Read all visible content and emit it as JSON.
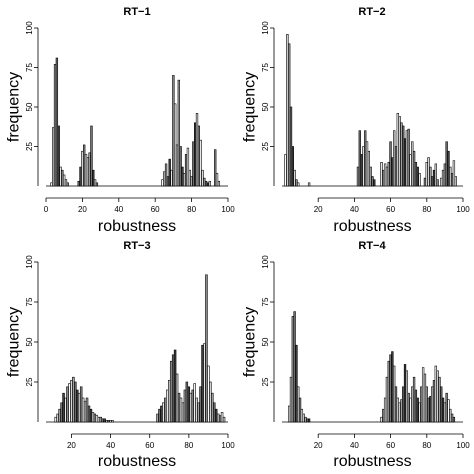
{
  "chart_data": [
    {
      "type": "bar",
      "title": "RT−1",
      "xlabel": "robustness",
      "ylabel": "frequency",
      "xlim": [
        0,
        100
      ],
      "ylim": [
        0,
        100
      ],
      "xticks": [
        "0",
        "20",
        "40",
        "60",
        "80",
        "100"
      ],
      "yticks": [
        "25",
        "50",
        "75",
        "100"
      ],
      "bars": [
        {
          "x": 3.0,
          "y": 2
        },
        {
          "x": 4.0,
          "y": 37
        },
        {
          "x": 5.0,
          "y": 77
        },
        {
          "x": 6.0,
          "y": 81
        },
        {
          "x": 7.0,
          "y": 38
        },
        {
          "x": 8.0,
          "y": 12
        },
        {
          "x": 9.0,
          "y": 10
        },
        {
          "x": 10.0,
          "y": 7
        },
        {
          "x": 11.0,
          "y": 4
        },
        {
          "x": 12.0,
          "y": 2
        },
        {
          "x": 18.0,
          "y": 3
        },
        {
          "x": 19.0,
          "y": 12
        },
        {
          "x": 20.0,
          "y": 22
        },
        {
          "x": 21.0,
          "y": 26
        },
        {
          "x": 22.0,
          "y": 20
        },
        {
          "x": 23.0,
          "y": 18
        },
        {
          "x": 24.0,
          "y": 21
        },
        {
          "x": 25.0,
          "y": 38
        },
        {
          "x": 26.0,
          "y": 10
        },
        {
          "x": 27.0,
          "y": 4
        },
        {
          "x": 28.0,
          "y": 2
        },
        {
          "x": 64.0,
          "y": 4
        },
        {
          "x": 65.0,
          "y": 9
        },
        {
          "x": 66.0,
          "y": 14
        },
        {
          "x": 67.0,
          "y": 6
        },
        {
          "x": 68.0,
          "y": 17
        },
        {
          "x": 69.0,
          "y": 10
        },
        {
          "x": 70.0,
          "y": 70
        },
        {
          "x": 71.0,
          "y": 52
        },
        {
          "x": 72.0,
          "y": 26
        },
        {
          "x": 73.0,
          "y": 67
        },
        {
          "x": 74.0,
          "y": 25
        },
        {
          "x": 75.0,
          "y": 12
        },
        {
          "x": 76.0,
          "y": 8
        },
        {
          "x": 77.0,
          "y": 20
        },
        {
          "x": 78.0,
          "y": 24
        },
        {
          "x": 79.0,
          "y": 10
        },
        {
          "x": 80.0,
          "y": 6
        },
        {
          "x": 81.0,
          "y": 28
        },
        {
          "x": 82.0,
          "y": 40
        },
        {
          "x": 83.0,
          "y": 46
        },
        {
          "x": 84.0,
          "y": 38
        },
        {
          "x": 85.0,
          "y": 29
        },
        {
          "x": 86.0,
          "y": 10
        },
        {
          "x": 87.0,
          "y": 5
        },
        {
          "x": 88.0,
          "y": 3
        },
        {
          "x": 89.0,
          "y": 2
        },
        {
          "x": 90.0,
          "y": 3
        },
        {
          "x": 93.0,
          "y": 23
        },
        {
          "x": 94.0,
          "y": 8
        },
        {
          "x": 95.0,
          "y": 3
        }
      ]
    },
    {
      "type": "bar",
      "title": "RT−2",
      "xlabel": "robustness",
      "ylabel": "frequency",
      "xlim": [
        0,
        100
      ],
      "ylim": [
        0,
        100
      ],
      "xticks": [
        "20",
        "40",
        "60",
        "80",
        "100"
      ],
      "yticks": [
        "25",
        "50",
        "75",
        "100"
      ],
      "bars": [
        {
          "x": 2.0,
          "y": 20
        },
        {
          "x": 3.0,
          "y": 96
        },
        {
          "x": 4.0,
          "y": 90
        },
        {
          "x": 5.0,
          "y": 50
        },
        {
          "x": 6.0,
          "y": 25
        },
        {
          "x": 7.0,
          "y": 10
        },
        {
          "x": 8.0,
          "y": 4
        },
        {
          "x": 9.0,
          "y": 2
        },
        {
          "x": 15.0,
          "y": 2
        },
        {
          "x": 42.0,
          "y": 12
        },
        {
          "x": 43.0,
          "y": 35
        },
        {
          "x": 44.0,
          "y": 20
        },
        {
          "x": 45.0,
          "y": 25
        },
        {
          "x": 46.0,
          "y": 35
        },
        {
          "x": 47.0,
          "y": 28
        },
        {
          "x": 48.0,
          "y": 22
        },
        {
          "x": 49.0,
          "y": 12
        },
        {
          "x": 50.0,
          "y": 6
        },
        {
          "x": 51.0,
          "y": 4
        },
        {
          "x": 55.0,
          "y": 15
        },
        {
          "x": 56.0,
          "y": 10
        },
        {
          "x": 57.0,
          "y": 14
        },
        {
          "x": 58.0,
          "y": 12
        },
        {
          "x": 59.0,
          "y": 15
        },
        {
          "x": 60.0,
          "y": 28
        },
        {
          "x": 61.0,
          "y": 18
        },
        {
          "x": 62.0,
          "y": 35
        },
        {
          "x": 63.0,
          "y": 25
        },
        {
          "x": 64.0,
          "y": 46
        },
        {
          "x": 65.0,
          "y": 44
        },
        {
          "x": 66.0,
          "y": 40
        },
        {
          "x": 67.0,
          "y": 38
        },
        {
          "x": 68.0,
          "y": 30
        },
        {
          "x": 69.0,
          "y": 35
        },
        {
          "x": 70.0,
          "y": 36
        },
        {
          "x": 71.0,
          "y": 20
        },
        {
          "x": 72.0,
          "y": 28
        },
        {
          "x": 73.0,
          "y": 22
        },
        {
          "x": 74.0,
          "y": 15
        },
        {
          "x": 75.0,
          "y": 12
        },
        {
          "x": 76.0,
          "y": 8
        },
        {
          "x": 79.0,
          "y": 5
        },
        {
          "x": 80.0,
          "y": 15
        },
        {
          "x": 81.0,
          "y": 18
        },
        {
          "x": 82.0,
          "y": 12
        },
        {
          "x": 83.0,
          "y": 6
        },
        {
          "x": 84.0,
          "y": 10
        },
        {
          "x": 85.0,
          "y": 14
        },
        {
          "x": 86.0,
          "y": 4
        },
        {
          "x": 88.0,
          "y": 5
        },
        {
          "x": 89.0,
          "y": 10
        },
        {
          "x": 90.0,
          "y": 14
        },
        {
          "x": 91.0,
          "y": 28
        },
        {
          "x": 92.0,
          "y": 22
        },
        {
          "x": 93.0,
          "y": 12
        },
        {
          "x": 94.0,
          "y": 8
        },
        {
          "x": 95.0,
          "y": 16
        },
        {
          "x": 96.0,
          "y": 6
        }
      ]
    },
    {
      "type": "bar",
      "title": "RT−3",
      "xlabel": "robustness",
      "ylabel": "frequency",
      "xlim": [
        7,
        100
      ],
      "ylim": [
        0,
        100
      ],
      "xticks": [
        "20",
        "40",
        "60",
        "80",
        "100"
      ],
      "yticks": [
        "25",
        "50",
        "75",
        "100"
      ],
      "bars": [
        {
          "x": 12.0,
          "y": 3
        },
        {
          "x": 13.0,
          "y": 5
        },
        {
          "x": 14.0,
          "y": 8
        },
        {
          "x": 15.0,
          "y": 12
        },
        {
          "x": 16.0,
          "y": 18
        },
        {
          "x": 17.0,
          "y": 15
        },
        {
          "x": 18.0,
          "y": 22
        },
        {
          "x": 19.0,
          "y": 24
        },
        {
          "x": 20.0,
          "y": 26
        },
        {
          "x": 21.0,
          "y": 28
        },
        {
          "x": 22.0,
          "y": 25
        },
        {
          "x": 23.0,
          "y": 20
        },
        {
          "x": 24.0,
          "y": 18
        },
        {
          "x": 25.0,
          "y": 22
        },
        {
          "x": 26.0,
          "y": 15
        },
        {
          "x": 27.0,
          "y": 13
        },
        {
          "x": 28.0,
          "y": 15
        },
        {
          "x": 29.0,
          "y": 10
        },
        {
          "x": 30.0,
          "y": 8
        },
        {
          "x": 31.0,
          "y": 6
        },
        {
          "x": 32.0,
          "y": 5
        },
        {
          "x": 33.0,
          "y": 4
        },
        {
          "x": 34.0,
          "y": 3
        },
        {
          "x": 35.0,
          "y": 3
        },
        {
          "x": 36.0,
          "y": 2
        },
        {
          "x": 37.0,
          "y": 2
        },
        {
          "x": 38.0,
          "y": 1
        },
        {
          "x": 39.0,
          "y": 1
        },
        {
          "x": 40.0,
          "y": 1
        },
        {
          "x": 41.0,
          "y": 1
        },
        {
          "x": 64.0,
          "y": 5
        },
        {
          "x": 65.0,
          "y": 8
        },
        {
          "x": 66.0,
          "y": 10
        },
        {
          "x": 67.0,
          "y": 12
        },
        {
          "x": 68.0,
          "y": 15
        },
        {
          "x": 69.0,
          "y": 20
        },
        {
          "x": 70.0,
          "y": 26
        },
        {
          "x": 71.0,
          "y": 38
        },
        {
          "x": 72.0,
          "y": 42
        },
        {
          "x": 73.0,
          "y": 45
        },
        {
          "x": 74.0,
          "y": 30
        },
        {
          "x": 75.0,
          "y": 18
        },
        {
          "x": 76.0,
          "y": 15
        },
        {
          "x": 77.0,
          "y": 12
        },
        {
          "x": 78.0,
          "y": 20
        },
        {
          "x": 79.0,
          "y": 25
        },
        {
          "x": 80.0,
          "y": 22
        },
        {
          "x": 81.0,
          "y": 18
        },
        {
          "x": 82.0,
          "y": 20
        },
        {
          "x": 83.0,
          "y": 24
        },
        {
          "x": 84.0,
          "y": 15
        },
        {
          "x": 85.0,
          "y": 12
        },
        {
          "x": 86.0,
          "y": 22
        },
        {
          "x": 87.0,
          "y": 48
        },
        {
          "x": 88.0,
          "y": 49
        },
        {
          "x": 89.0,
          "y": 92
        },
        {
          "x": 90.0,
          "y": 35
        },
        {
          "x": 91.0,
          "y": 25
        },
        {
          "x": 92.0,
          "y": 18
        },
        {
          "x": 93.0,
          "y": 12
        },
        {
          "x": 94.0,
          "y": 8
        },
        {
          "x": 95.0,
          "y": 5
        },
        {
          "x": 96.0,
          "y": 4
        },
        {
          "x": 97.0,
          "y": 6
        },
        {
          "x": 98.0,
          "y": 3
        }
      ]
    },
    {
      "type": "bar",
      "title": "RT−4",
      "xlabel": "robustness",
      "ylabel": "frequency",
      "xlim": [
        0,
        100
      ],
      "ylim": [
        0,
        100
      ],
      "xticks": [
        "20",
        "40",
        "60",
        "80",
        "100"
      ],
      "yticks": [
        "25",
        "50",
        "75",
        "100"
      ],
      "bars": [
        {
          "x": 4.0,
          "y": 10
        },
        {
          "x": 5.0,
          "y": 28
        },
        {
          "x": 6.0,
          "y": 66
        },
        {
          "x": 7.0,
          "y": 69
        },
        {
          "x": 8.0,
          "y": 48
        },
        {
          "x": 9.0,
          "y": 22
        },
        {
          "x": 10.0,
          "y": 15
        },
        {
          "x": 11.0,
          "y": 8
        },
        {
          "x": 12.0,
          "y": 5
        },
        {
          "x": 13.0,
          "y": 3
        },
        {
          "x": 14.0,
          "y": 2
        },
        {
          "x": 15.0,
          "y": 2
        },
        {
          "x": 55.0,
          "y": 3
        },
        {
          "x": 56.0,
          "y": 8
        },
        {
          "x": 57.0,
          "y": 15
        },
        {
          "x": 58.0,
          "y": 28
        },
        {
          "x": 59.0,
          "y": 38
        },
        {
          "x": 60.0,
          "y": 42
        },
        {
          "x": 61.0,
          "y": 44
        },
        {
          "x": 62.0,
          "y": 35
        },
        {
          "x": 63.0,
          "y": 22
        },
        {
          "x": 64.0,
          "y": 15
        },
        {
          "x": 65.0,
          "y": 12
        },
        {
          "x": 66.0,
          "y": 14
        },
        {
          "x": 67.0,
          "y": 22
        },
        {
          "x": 68.0,
          "y": 36
        },
        {
          "x": 69.0,
          "y": 32
        },
        {
          "x": 70.0,
          "y": 18
        },
        {
          "x": 71.0,
          "y": 15
        },
        {
          "x": 72.0,
          "y": 22
        },
        {
          "x": 73.0,
          "y": 28
        },
        {
          "x": 74.0,
          "y": 20
        },
        {
          "x": 75.0,
          "y": 15
        },
        {
          "x": 76.0,
          "y": 12
        },
        {
          "x": 77.0,
          "y": 22
        },
        {
          "x": 78.0,
          "y": 34
        },
        {
          "x": 79.0,
          "y": 30
        },
        {
          "x": 80.0,
          "y": 22
        },
        {
          "x": 81.0,
          "y": 15
        },
        {
          "x": 82.0,
          "y": 16
        },
        {
          "x": 83.0,
          "y": 22
        },
        {
          "x": 84.0,
          "y": 26
        },
        {
          "x": 85.0,
          "y": 35
        },
        {
          "x": 86.0,
          "y": 32
        },
        {
          "x": 87.0,
          "y": 28
        },
        {
          "x": 88.0,
          "y": 22
        },
        {
          "x": 89.0,
          "y": 15
        },
        {
          "x": 90.0,
          "y": 12
        },
        {
          "x": 91.0,
          "y": 18
        },
        {
          "x": 92.0,
          "y": 14
        },
        {
          "x": 93.0,
          "y": 8
        },
        {
          "x": 94.0,
          "y": 5
        },
        {
          "x": 95.0,
          "y": 3
        }
      ]
    }
  ]
}
